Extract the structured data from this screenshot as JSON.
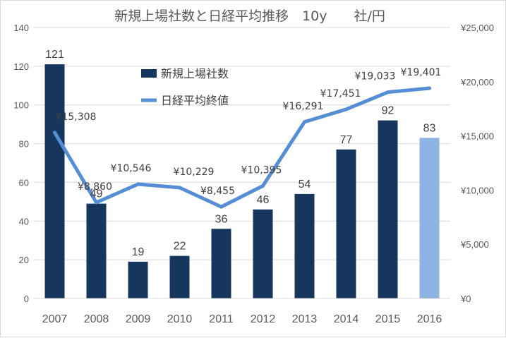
{
  "chart_data": {
    "type": "bar+line",
    "title": "新規上場社数と日経平均推移　10y　　社/円",
    "categories": [
      "2007",
      "2008",
      "2009",
      "2010",
      "2011",
      "2012",
      "2013",
      "2014",
      "2015",
      "2016"
    ],
    "series": [
      {
        "name": "新規上場社数",
        "type": "bar",
        "axis": "left",
        "values": [
          121,
          49,
          19,
          22,
          36,
          46,
          54,
          77,
          92,
          83
        ],
        "labels": [
          "121",
          "49",
          "19",
          "22",
          "36",
          "46",
          "54",
          "77",
          "92",
          "83"
        ],
        "color": "#17365d",
        "highlight_color": "#8eb4e3",
        "highlight_index": 9
      },
      {
        "name": "日経平均終値",
        "type": "line",
        "axis": "right",
        "values": [
          15308,
          8860,
          10546,
          10229,
          8455,
          10395,
          16291,
          17451,
          19033,
          19401
        ],
        "labels": [
          "¥15,308",
          "¥8,860",
          "¥10,546",
          "¥10,229",
          "¥8,455",
          "¥10,395",
          "¥16,291",
          "¥17,451",
          "¥19,033",
          "¥19,401"
        ],
        "color": "#558ed5"
      }
    ],
    "y_left": {
      "range": [
        0,
        140
      ],
      "ticks": [
        "0",
        "20",
        "40",
        "60",
        "80",
        "100",
        "120",
        "140"
      ]
    },
    "y_right": {
      "range": [
        0,
        25000
      ],
      "ticks": [
        "¥0",
        "¥5,000",
        "¥10,000",
        "¥15,000",
        "¥20,000",
        "¥25,000"
      ]
    },
    "grid": true,
    "legend": "top-center",
    "text_color": "#595959",
    "grid_color": "#d9d9d9"
  }
}
